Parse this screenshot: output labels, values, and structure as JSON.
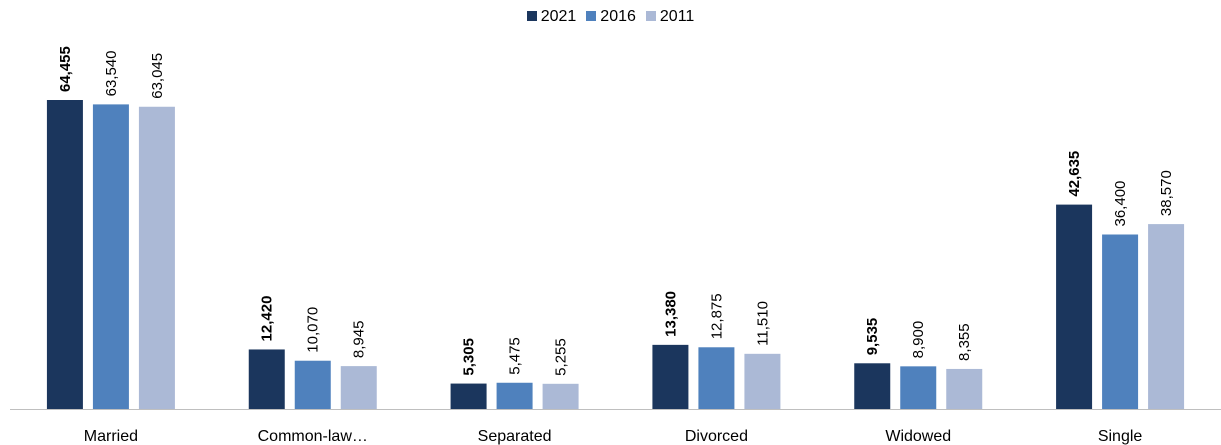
{
  "chart_data": {
    "type": "bar",
    "title": "",
    "xlabel": "",
    "ylabel": "",
    "categories": [
      "Married",
      "Common-law…",
      "Separated",
      "Divorced",
      "Widowed",
      "Single"
    ],
    "series": [
      {
        "name": "2021",
        "color": "#1b365d",
        "bold_labels": true,
        "values": [
          64455,
          12420,
          5305,
          13380,
          9535,
          42635
        ],
        "labels": [
          "64,455",
          "12,420",
          "5,305",
          "13,380",
          "9,535",
          "42,635"
        ]
      },
      {
        "name": "2016",
        "color": "#4f81bd",
        "bold_labels": false,
        "values": [
          63540,
          10070,
          5475,
          12875,
          8900,
          36400
        ],
        "labels": [
          "63,540",
          "10,070",
          "5,475",
          "12,875",
          "8,900",
          "36,400"
        ]
      },
      {
        "name": "2011",
        "color": "#abb9d6",
        "bold_labels": false,
        "values": [
          63045,
          8945,
          5255,
          11510,
          8355,
          38570
        ],
        "labels": [
          "63,045",
          "8,945",
          "5,255",
          "11,510",
          "8,355",
          "38,570"
        ]
      }
    ],
    "ylim": [
      0,
      64455
    ],
    "grid": false,
    "legend_position": "top-center",
    "data_labels": "rotated vertical above bars",
    "axis_line_color": "#bfbfbf"
  }
}
